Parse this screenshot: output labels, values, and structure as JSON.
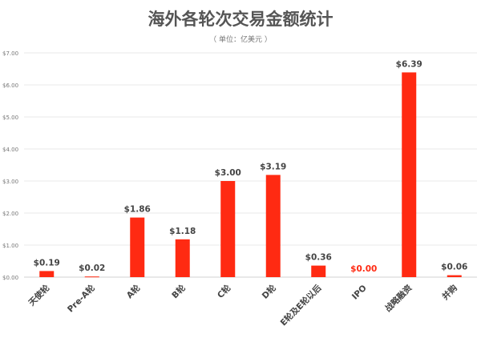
{
  "chart_data": {
    "type": "bar",
    "title": "海外各轮次交易金额统计",
    "subtitle": "（ 单位：亿美元 ）",
    "xlabel": "",
    "ylabel": "",
    "ylim": [
      0,
      7
    ],
    "yticks": [
      "$0.00",
      "$1.00",
      "$2.00",
      "$3.00",
      "$4.00",
      "$5.00",
      "$6.00",
      "$7.00"
    ],
    "grid": true,
    "categories": [
      "天使轮",
      "Pre-A轮",
      "A轮",
      "B轮",
      "C轮",
      "D轮",
      "E轮及E轮以后",
      "IPO",
      "战略融资",
      "并购"
    ],
    "values": [
      0.19,
      0.02,
      1.86,
      1.18,
      3.0,
      3.19,
      0.36,
      0.0,
      6.39,
      0.06
    ],
    "labels": [
      "$0.19",
      "$0.02",
      "$1.86",
      "$1.18",
      "$3.00",
      "$3.19",
      "$0.36",
      "$0.00",
      "$6.39",
      "$0.06"
    ],
    "colors": {
      "bar": "#ff2a12",
      "label": "#444444",
      "zero_label": "#ff2a12"
    }
  }
}
